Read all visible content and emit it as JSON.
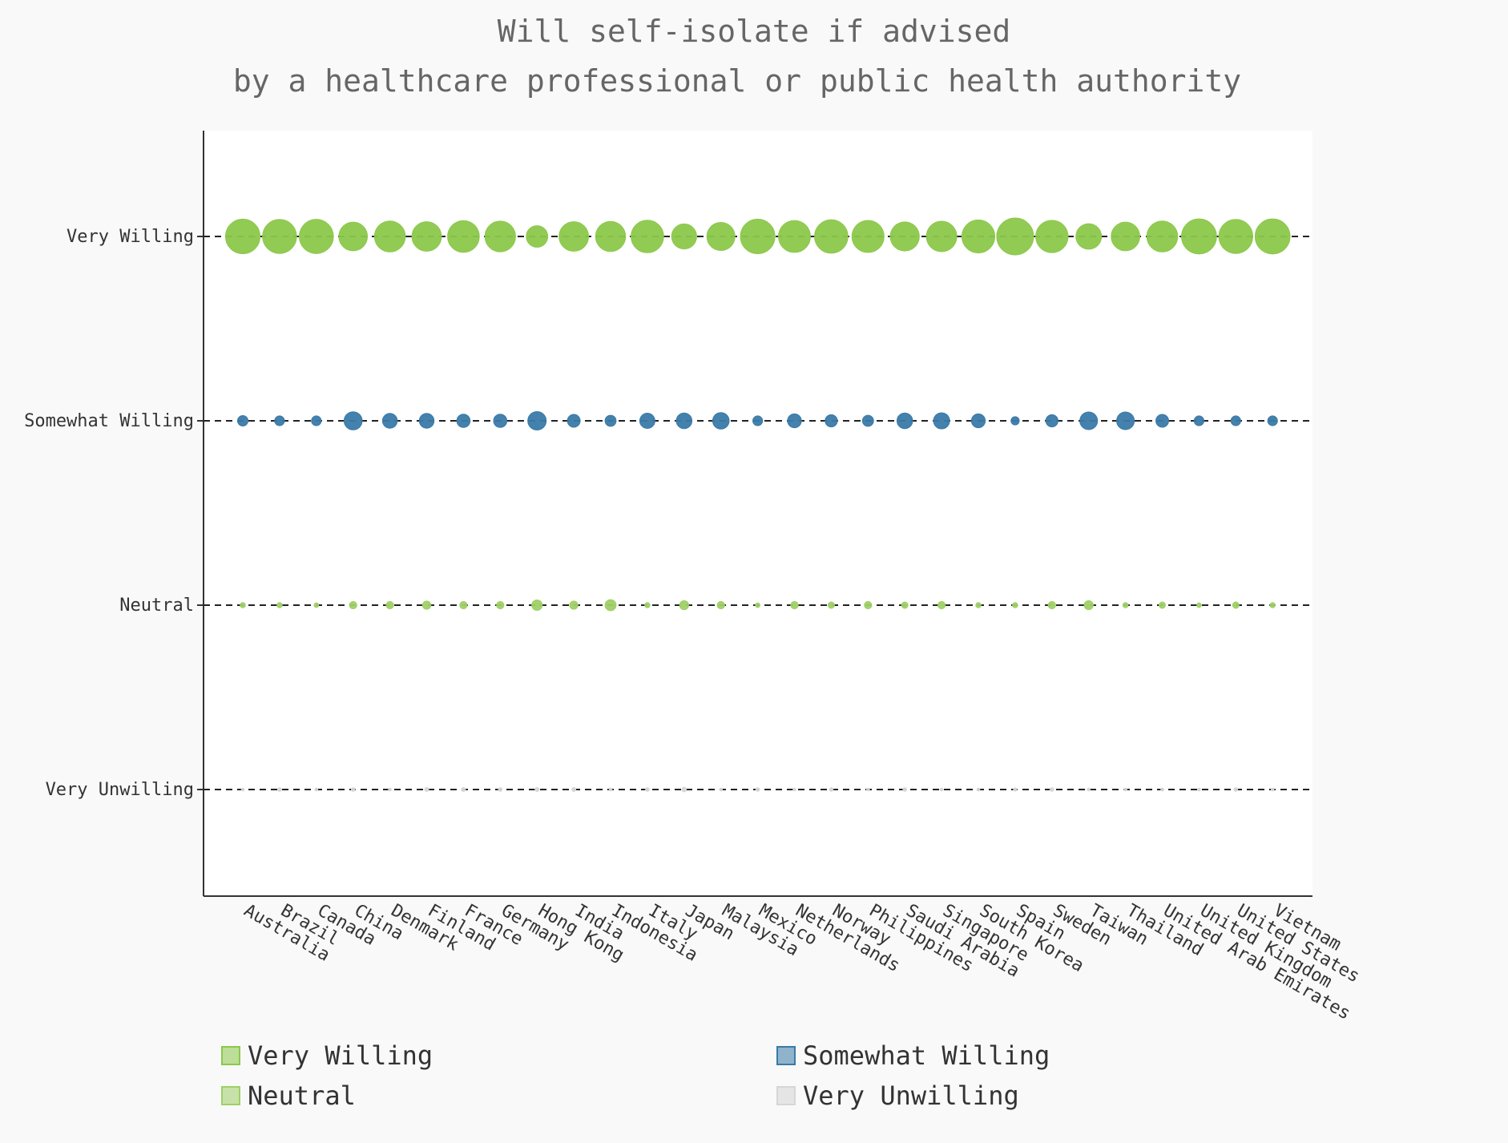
{
  "chart_data": {
    "type": "scatter",
    "title": "Will self-isolate if advised",
    "subtitle": "by a healthcare professional or public health authority",
    "categories": [
      "Australia",
      "Brazil",
      "Canada",
      "China",
      "Denmark",
      "Finland",
      "France",
      "Germany",
      "Hong Kong",
      "India",
      "Indonesia",
      "Italy",
      "Japan",
      "Malaysia",
      "Mexico",
      "Netherlands",
      "Norway",
      "Philippines",
      "Saudi Arabia",
      "Singapore",
      "South Korea",
      "Spain",
      "Sweden",
      "Taiwan",
      "Thailand",
      "United Arab Emirates",
      "United Kingdom",
      "United States",
      "Vietnam"
    ],
    "y_levels": [
      "Very Willing",
      "Somewhat Willing",
      "Neutral",
      "Very Unwilling"
    ],
    "encoding": "bubble area proportional to share of respondents",
    "grid": "dashed horizontal lines at each level",
    "legend_position": "bottom",
    "series": [
      {
        "name": "Very Willing",
        "color": "#8cc84b",
        "values": [
          88,
          85,
          86,
          60,
          70,
          64,
          74,
          69,
          34,
          64,
          66,
          78,
          46,
          58,
          88,
          75,
          82,
          76,
          62,
          68,
          80,
          100,
          77,
          48,
          60,
          70,
          90,
          85,
          90
        ]
      },
      {
        "name": "Somewhat Willing",
        "color": "#3a7aa8",
        "values": [
          8,
          7,
          7,
          24,
          16,
          16,
          13,
          13,
          25,
          12,
          9,
          17,
          18,
          20,
          7,
          14,
          11,
          9,
          18,
          19,
          14,
          5,
          11,
          23,
          23,
          12,
          7,
          7,
          7
        ]
      },
      {
        "name": "Neutral",
        "color": "#9fd066",
        "values": [
          2,
          2,
          1.5,
          4,
          4,
          5,
          4,
          4,
          8,
          5,
          9,
          2,
          6,
          4,
          1.5,
          4,
          3,
          4,
          3,
          4,
          2,
          2,
          4,
          6,
          2,
          3,
          1.5,
          3,
          2
        ]
      },
      {
        "name": "Very Unwilling",
        "color": "#d6d6d6",
        "values": [
          0.3,
          1,
          0.5,
          1,
          0.3,
          1.2,
          1.2,
          1,
          1.2,
          1.2,
          0.5,
          1,
          1.5,
          0.5,
          1,
          0.3,
          1,
          0.6,
          1,
          0.6,
          0.6,
          0.8,
          1,
          0.3,
          0.5,
          0.5,
          0.3,
          1,
          0.3
        ]
      }
    ]
  }
}
